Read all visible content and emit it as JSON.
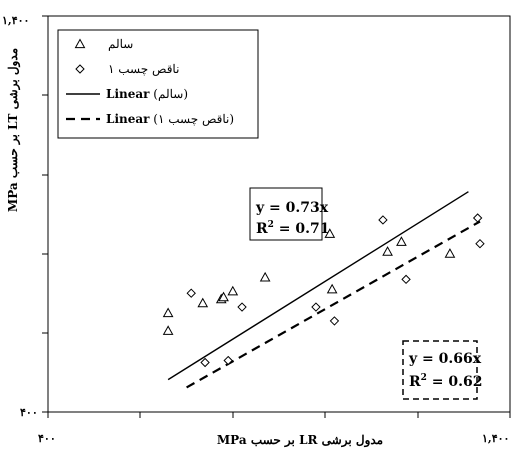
{
  "chart_data": {
    "type": "scatter",
    "title": "",
    "xlabel": "مدول برشی LR بر حسب MPa",
    "ylabel": "مدول برشی LT بر حسب MPa",
    "xlim": [
      400,
      1400
    ],
    "ylim": [
      400,
      1400
    ],
    "x_tick_labels": [
      "۴۰۰",
      "۱,۴۰۰"
    ],
    "y_tick_labels": [
      "۴۰۰",
      "۱,۴۰۰"
    ],
    "grid": false,
    "legend_placement": "top-left",
    "series": [
      {
        "name": "سالم",
        "marker": "triangle",
        "points": [
          [
            660,
            650
          ],
          [
            660,
            605
          ],
          [
            735,
            675
          ],
          [
            775,
            685
          ],
          [
            780,
            690
          ],
          [
            800,
            705
          ],
          [
            870,
            740
          ],
          [
            1010,
            850
          ],
          [
            1015,
            710
          ],
          [
            1135,
            805
          ],
          [
            1165,
            830
          ],
          [
            1270,
            800
          ]
        ]
      },
      {
        "name": "ناقص چسب ۱",
        "marker": "diamond",
        "points": [
          [
            710,
            700
          ],
          [
            740,
            525
          ],
          [
            790,
            530
          ],
          [
            820,
            665
          ],
          [
            980,
            665
          ],
          [
            1020,
            630
          ],
          [
            1125,
            885
          ],
          [
            1175,
            735
          ],
          [
            1330,
            890
          ],
          [
            1335,
            825
          ]
        ]
      }
    ],
    "trendlines": [
      {
        "name": "Linear (سالم)",
        "style": "solid",
        "slope": 0.73,
        "x": [
          660,
          1310
        ]
      },
      {
        "name": "Linear (ناقص چسب ۱)",
        "style": "dashed",
        "slope": 0.66,
        "x": [
          700,
          1335
        ]
      }
    ],
    "legend_entries": [
      {
        "marker": "triangle",
        "text": "سالم"
      },
      {
        "marker": "diamond",
        "text": "ناقص چسب ۱"
      },
      {
        "line": "solid",
        "bold_text": "Linear",
        "text": "(سالم)"
      },
      {
        "line": "dashed",
        "bold_text": "Linear",
        "text": "(ناقص چسب ۱)"
      }
    ],
    "annotations": {
      "solid_eq": "y = 0.73x",
      "solid_r2": "R",
      "solid_r2_value": " = 0.71",
      "dashed_eq": "y = 0.66x",
      "dashed_r2": "R",
      "dashed_r2_value": " = 0.62",
      "squared": "2"
    }
  }
}
